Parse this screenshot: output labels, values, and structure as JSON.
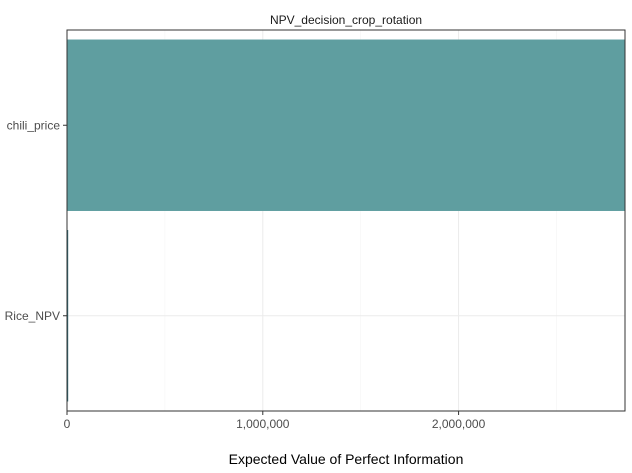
{
  "chart_data": {
    "type": "bar",
    "orientation": "horizontal",
    "title": "NPV_decision_crop_rotation",
    "xlabel": "Expected Value of Perfect Information",
    "ylabel": "",
    "categories": [
      "chili_price",
      "Rice_NPV"
    ],
    "values": [
      2850000,
      4000
    ],
    "xlim": [
      0,
      2850000
    ],
    "x_ticks": [
      0,
      1000000,
      2000000
    ],
    "x_tick_labels": [
      "0",
      "1,000,000",
      "2,000,000"
    ],
    "grid": true,
    "legend": "none",
    "colors": {
      "bar": "#5f9ea0",
      "bar_outline": "#2f6b77",
      "grid_major": "#ebebeb",
      "grid_minor": "#f5f5f5",
      "panel_border": "#333333"
    }
  }
}
